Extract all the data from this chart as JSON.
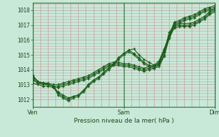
{
  "title": "Pression niveau de la mer( hPa )",
  "ylim": [
    1011.5,
    1018.5
  ],
  "yticks": [
    1012,
    1013,
    1014,
    1015,
    1016,
    1017,
    1018
  ],
  "xtick_labels": [
    "Ven",
    "Sam",
    "Dim"
  ],
  "xtick_positions": [
    0,
    1,
    2
  ],
  "background_color": "#c8e8d8",
  "line_color": "#1a5c1a",
  "vline_positions": [
    0,
    1,
    2
  ],
  "series": [
    [
      1013.6,
      1013.2,
      1013.1,
      1013.1,
      1013.0,
      1013.0,
      1013.1,
      1013.2,
      1013.3,
      1013.4,
      1013.5,
      1013.6,
      1013.8,
      1014.0,
      1014.2,
      1014.4,
      1014.5,
      1014.5,
      1014.4,
      1014.4,
      1014.3,
      1014.2,
      1014.1,
      1014.2,
      1014.3,
      1014.4,
      1015.2,
      1016.5,
      1017.0,
      1017.1,
      1017.1,
      1017.1,
      1017.2,
      1017.4,
      1017.6,
      1017.9,
      1018.1
    ],
    [
      1013.3,
      1013.1,
      1013.0,
      1013.0,
      1012.9,
      1012.9,
      1013.0,
      1013.1,
      1013.2,
      1013.3,
      1013.4,
      1013.5,
      1013.7,
      1013.9,
      1014.1,
      1014.3,
      1014.4,
      1014.4,
      1014.3,
      1014.3,
      1014.2,
      1014.1,
      1014.0,
      1014.1,
      1014.2,
      1014.3,
      1015.0,
      1016.3,
      1016.9,
      1017.0,
      1017.0,
      1017.0,
      1017.1,
      1017.3,
      1017.5,
      1017.8,
      1018.0
    ],
    [
      1013.1,
      1013.0,
      1012.9,
      1012.9,
      1012.8,
      1012.8,
      1012.9,
      1013.0,
      1013.1,
      1013.2,
      1013.3,
      1013.4,
      1013.6,
      1013.8,
      1014.0,
      1014.2,
      1014.3,
      1014.3,
      1014.2,
      1014.2,
      1014.1,
      1014.0,
      1013.9,
      1014.0,
      1014.1,
      1014.2,
      1014.9,
      1016.1,
      1016.8,
      1016.9,
      1016.9,
      1016.9,
      1017.0,
      1017.2,
      1017.4,
      1017.7,
      1017.9
    ],
    [
      1013.4,
      1013.1,
      1013.1,
      1013.0,
      1012.9,
      1012.5,
      1012.3,
      1012.1,
      1012.2,
      1012.3,
      1012.6,
      1013.0,
      1013.3,
      1013.5,
      1013.8,
      1014.1,
      1014.4,
      1014.8,
      1015.1,
      1015.3,
      1015.1,
      1014.8,
      1014.5,
      1014.3,
      1014.2,
      1014.5,
      1015.3,
      1016.2,
      1017.1,
      1017.2,
      1017.4,
      1017.5,
      1017.6,
      1017.8,
      1018.0,
      1018.1,
      1018.2
    ],
    [
      1013.5,
      1013.2,
      1013.1,
      1013.0,
      1012.9,
      1012.3,
      1012.1,
      1011.9,
      1012.1,
      1012.2,
      1012.5,
      1012.9,
      1013.2,
      1013.4,
      1013.7,
      1014.0,
      1014.3,
      1014.7,
      1015.0,
      1015.2,
      1015.0,
      1014.7,
      1014.4,
      1014.2,
      1014.1,
      1014.4,
      1015.2,
      1016.1,
      1017.0,
      1017.1,
      1017.3,
      1017.4,
      1017.5,
      1017.7,
      1017.9,
      1018.0,
      1018.1
    ],
    [
      1013.6,
      1013.2,
      1013.1,
      1013.0,
      1012.9,
      1012.4,
      1012.2,
      1012.0,
      1012.2,
      1012.3,
      1012.6,
      1013.0,
      1013.3,
      1013.5,
      1013.8,
      1014.1,
      1014.4,
      1014.8,
      1015.1,
      1015.3,
      1015.4,
      1015.0,
      1014.7,
      1014.5,
      1014.3,
      1014.6,
      1015.4,
      1016.3,
      1017.2,
      1017.3,
      1017.5,
      1017.6,
      1017.7,
      1017.9,
      1018.1,
      1018.2,
      1018.3
    ]
  ],
  "n_points": 37,
  "x_start": 0,
  "x_end": 2
}
